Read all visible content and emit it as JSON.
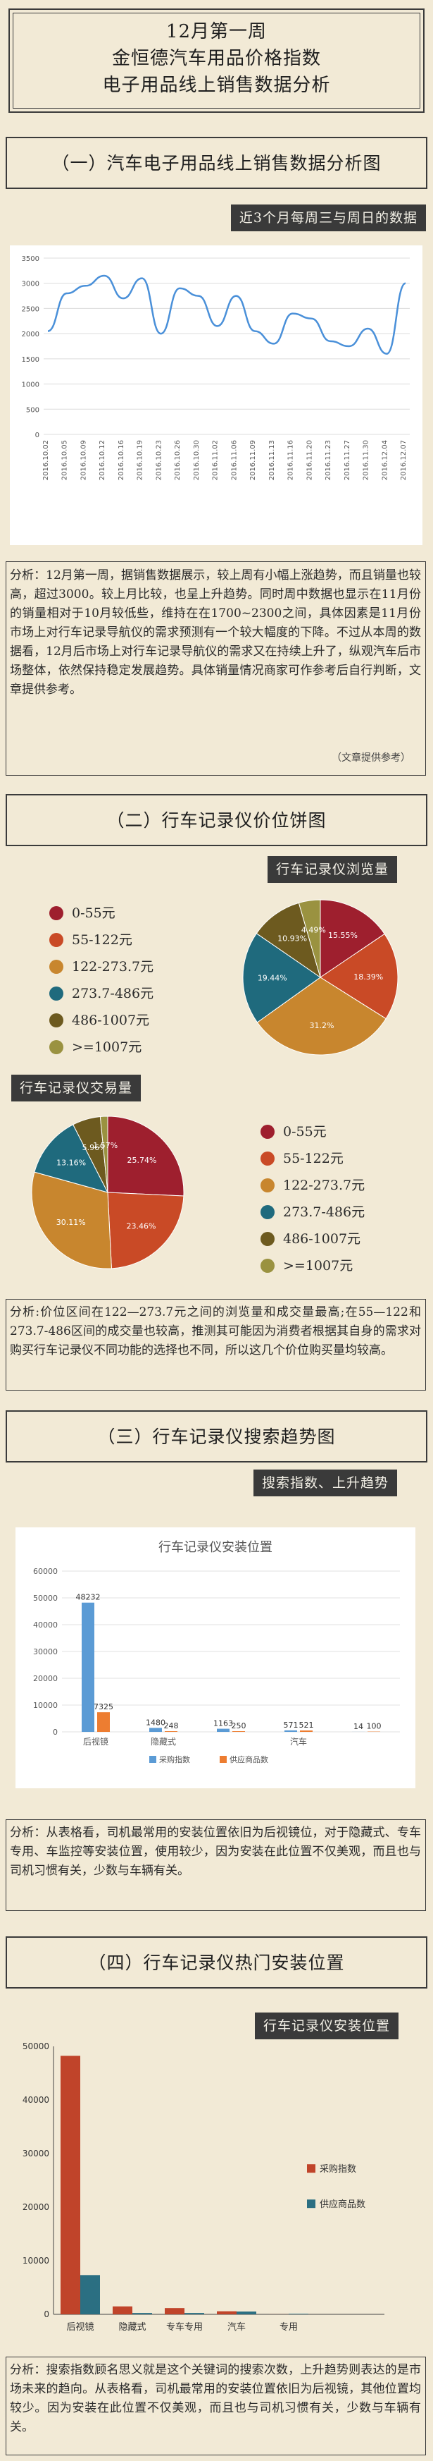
{
  "header": {
    "line1": "12月第一周",
    "line2": "金恒德汽车用品价格指数",
    "line3": "电子用品线上销售数据分析"
  },
  "section1": {
    "title": "（一）汽车电子用品线上销售数据分析图",
    "tag": "近3个月每周三与周日的数据",
    "analysis": "分析：12月第一周，据销售数据展示，较上周有小幅上涨趋势，而且销量也较高，超过3000。较上月比较，也呈上升趋势。同时周中数据也显示在11月份的销量相对于10月较低些，维持在在1700~2300之间，具体因素是11月份市场上对行车记录导航仪的需求预测有一个较大幅度的下降。不过从本周的数据看，12月后市场上对行车记录导航仪的需求又在持续上升了，纵观汽车后市场整体，依然保持稳定发展趋势。具体销量情况商家可作参考后自行判断，文章提供参考。",
    "credit": "（文章提供参考）"
  },
  "section2": {
    "title": "（二）行车记录仪价位饼图",
    "tag_views": "行车记录仪浏览量",
    "tag_trades": "行车记录仪交易量",
    "analysis": "分析:价位区间在122—273.7元之间的浏览量和成交量最高;在55—122和273.7-486区间的成交量也较高，推测其可能因为消费者根据其自身的需求对购买行车记录仪不同功能的选择也不同，所以这几个价位购买量均较高。"
  },
  "section3": {
    "title": "（三）行车记录仪搜索趋势图",
    "tag": "搜索指数、上升趋势",
    "analysis": "分析：从表格看，司机最常用的安装位置依旧为后视镜位，对于隐藏式、专车专用、车监控等安装位置，使用较少，因为安装在此位置不仅美观，而且也与司机习惯有关，少数与车辆有关。"
  },
  "section4": {
    "title": "（四）行车记录仪热门安装位置",
    "tag": "行车记录仪安装位置",
    "analysis": "分析：搜索指数顾名思义就是这个关键词的搜索次数，上升趋势则表达的是市场未来的趋向。从表格看，司机最常用的安装位置依旧为后视镜，其他位置均较少。因为安装在此位置不仅美观，而且也与司机习惯有关，少数与车辆有关。"
  },
  "chart_data": [
    {
      "type": "line",
      "x": [
        "2016.10.02",
        "2016.10.05",
        "2016.10.09",
        "2016.10.12",
        "2016.10.16",
        "2016.10.19",
        "2016.10.23",
        "2016.10.26",
        "2016.10.30",
        "2016.11.02",
        "2016.11.06",
        "2016.11.09",
        "2016.11.13",
        "2016.11.16",
        "2016.11.20",
        "2016.11.23",
        "2016.11.27",
        "2016.11.30",
        "2016.12.04",
        "2016.12.07"
      ],
      "series": [
        {
          "values": [
            2050,
            2800,
            2950,
            3150,
            2700,
            3100,
            2000,
            2900,
            2750,
            2150,
            2750,
            2050,
            1800,
            2400,
            2300,
            1850,
            1750,
            2100,
            1600,
            3000
          ],
          "color": "#4a90d9"
        }
      ],
      "ylim": [
        0,
        3500
      ],
      "yticks": [
        0,
        500,
        1000,
        1500,
        2000,
        2500,
        3000,
        3500
      ],
      "grid": true
    },
    {
      "type": "pie",
      "name": "行车记录仪浏览量",
      "labels": [
        "0-55元",
        "55-122元",
        "122-273.7元",
        "273.7-486元",
        "486-1007元",
        ">=1007元"
      ],
      "values": [
        15.55,
        18.39,
        31.2,
        19.44,
        10.93,
        4.49
      ],
      "colors": [
        "#9e1f2e",
        "#c94a26",
        "#c8862e",
        "#1f6a7d",
        "#6d5a1f",
        "#9a9240"
      ]
    },
    {
      "type": "pie",
      "name": "行车记录仪交易量",
      "labels": [
        "0-55元",
        "55-122元",
        "122-273.7元",
        "273.7-486元",
        "486-1007元",
        ">=1007元"
      ],
      "values": [
        25.74,
        23.46,
        30.11,
        13.16,
        5.96,
        1.57
      ],
      "colors": [
        "#9e1f2e",
        "#c94a26",
        "#c8862e",
        "#1f6a7d",
        "#6d5a1f",
        "#9a9240"
      ]
    },
    {
      "type": "bar",
      "title": "行车记录仪安装位置",
      "categories": [
        "后视镜",
        "隐藏式",
        "专车专用",
        "汽车",
        "专用"
      ],
      "category_labels_shown": [
        "后视镜",
        "隐藏式",
        "",
        "汽车",
        ""
      ],
      "series": [
        {
          "name": "采购指数",
          "values": [
            48232,
            1480,
            1163,
            571,
            14
          ],
          "color": "#5b9bd5"
        },
        {
          "name": "供应商品数",
          "values": [
            7325,
            248,
            250,
            521,
            100
          ],
          "color": "#ed7d31"
        }
      ],
      "ylim": [
        0,
        60000
      ],
      "yticks": [
        0,
        10000,
        20000,
        30000,
        40000,
        50000,
        60000
      ],
      "legend": "bottom"
    },
    {
      "type": "bar",
      "categories": [
        "后视镜",
        "隐藏式",
        "专车专用",
        "汽车",
        "专用"
      ],
      "series": [
        {
          "name": "采购指数",
          "values": [
            48232,
            1480,
            1163,
            571,
            14
          ],
          "color": "#c0442a"
        },
        {
          "name": "供应商品数",
          "values": [
            7325,
            248,
            250,
            521,
            100
          ],
          "color": "#2b6f82"
        }
      ],
      "ylim": [
        0,
        50000
      ],
      "yticks": [
        0,
        10000,
        20000,
        30000,
        40000,
        50000
      ],
      "legend": "right"
    }
  ]
}
